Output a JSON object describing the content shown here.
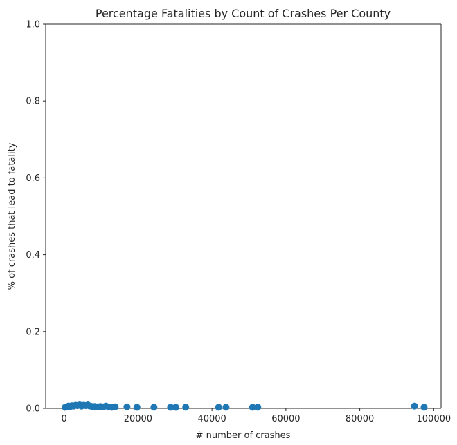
{
  "chart_data": {
    "type": "scatter",
    "title": "Percentage Fatalities by Count of Crashes Per County",
    "xlabel": "# number of crashes",
    "ylabel": "% of crashes that lead to fatality",
    "xlim": [
      -5000,
      102000
    ],
    "ylim": [
      0,
      1.0
    ],
    "xticks": [
      0,
      20000,
      40000,
      60000,
      80000,
      100000
    ],
    "xtick_labels": [
      "0",
      "20000",
      "40000",
      "60000",
      "80000",
      "100000"
    ],
    "yticks": [
      0.0,
      0.2,
      0.4,
      0.6,
      0.8,
      1.0
    ],
    "ytick_labels": [
      "0.0",
      "0.2",
      "0.4",
      "0.6",
      "0.8",
      "1.0"
    ],
    "grid": false,
    "marker_color": "#1f77b4",
    "series": [
      {
        "points": [
          [
            300,
            0.003
          ],
          [
            800,
            0.004
          ],
          [
            1200,
            0.006
          ],
          [
            1700,
            0.005
          ],
          [
            2100,
            0.007
          ],
          [
            2600,
            0.006
          ],
          [
            3100,
            0.008
          ],
          [
            3600,
            0.007
          ],
          [
            4200,
            0.009
          ],
          [
            4700,
            0.006
          ],
          [
            5300,
            0.008
          ],
          [
            5900,
            0.007
          ],
          [
            6400,
            0.009
          ],
          [
            7000,
            0.006
          ],
          [
            7600,
            0.005
          ],
          [
            8300,
            0.005
          ],
          [
            9000,
            0.004
          ],
          [
            9800,
            0.005
          ],
          [
            10600,
            0.004
          ],
          [
            11300,
            0.006
          ],
          [
            12100,
            0.004
          ],
          [
            12900,
            0.003
          ],
          [
            13800,
            0.004
          ],
          [
            17000,
            0.004
          ],
          [
            19700,
            0.003
          ],
          [
            24300,
            0.003
          ],
          [
            28800,
            0.003
          ],
          [
            30200,
            0.003
          ],
          [
            32900,
            0.003
          ],
          [
            41800,
            0.003
          ],
          [
            43800,
            0.003
          ],
          [
            51000,
            0.003
          ],
          [
            52400,
            0.003
          ],
          [
            94800,
            0.006
          ],
          [
            97400,
            0.003
          ]
        ]
      }
    ]
  }
}
